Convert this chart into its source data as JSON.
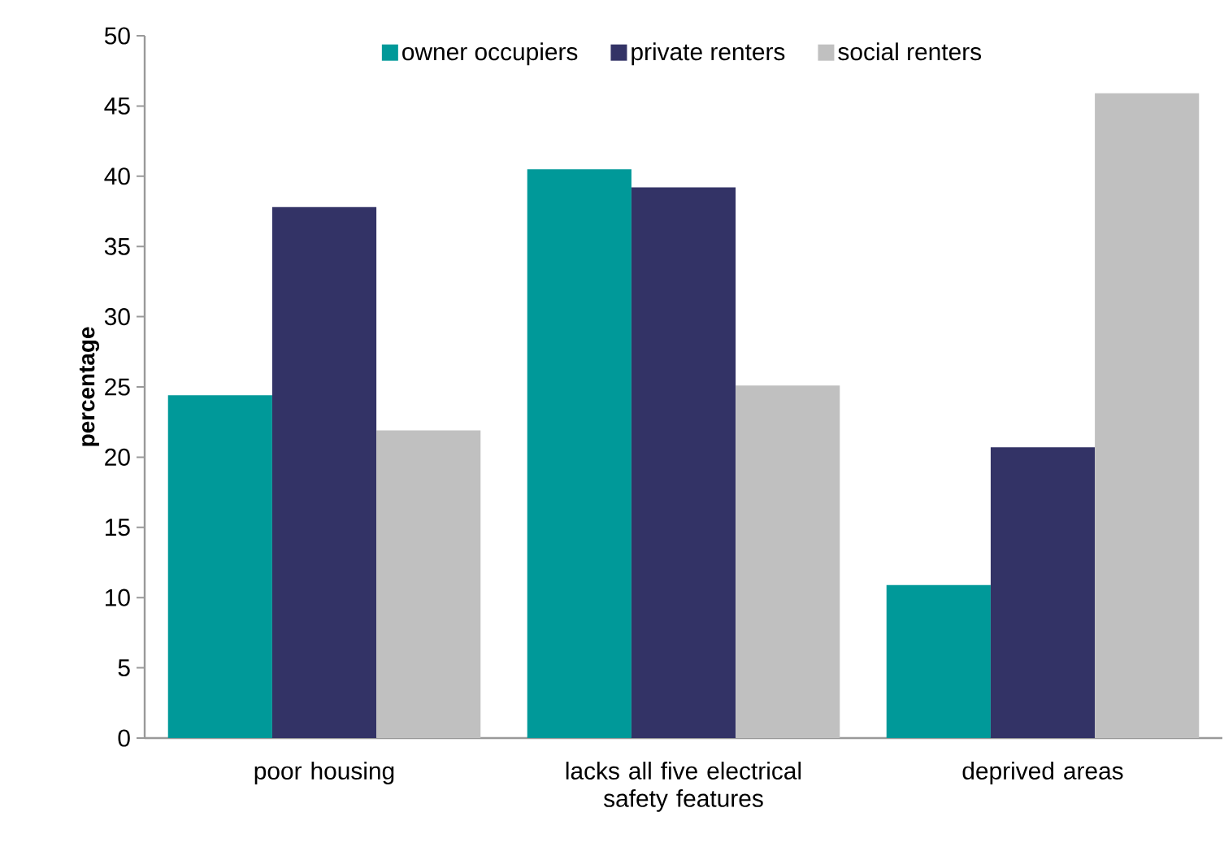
{
  "chart_data": {
    "type": "bar",
    "ylabel": "percentage",
    "categories": [
      "poor housing",
      "lacks all five electrical safety features",
      "deprived areas"
    ],
    "series": [
      {
        "name": "owner occupiers",
        "color": "#009999",
        "values": [
          24.4,
          40.5,
          10.9
        ]
      },
      {
        "name": "private renters",
        "color": "#333366",
        "values": [
          37.8,
          39.2,
          20.7
        ]
      },
      {
        "name": "social renters",
        "color": "#c0c0c0",
        "values": [
          21.9,
          25.1,
          45.9
        ]
      }
    ],
    "ylim": [
      0,
      50
    ],
    "yticks": [
      0,
      5,
      10,
      15,
      20,
      25,
      30,
      35,
      40,
      45,
      50
    ],
    "legend": "top"
  }
}
